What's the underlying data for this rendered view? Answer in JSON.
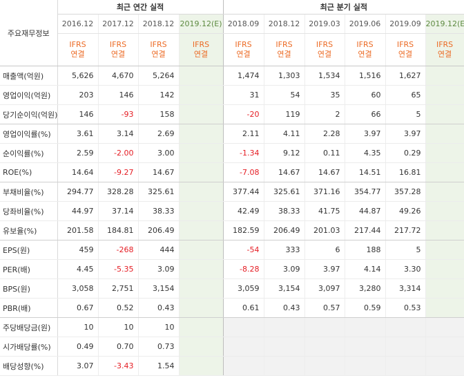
{
  "header": {
    "row_label": "주요재무정보",
    "annual_group": "최근 연간 실적",
    "quarter_group": "최근 분기 실적",
    "periods": [
      {
        "label": "2016.12"
      },
      {
        "label": "2017.12"
      },
      {
        "label": "2018.12"
      },
      {
        "label": "2019.12(E)"
      },
      {
        "label": "2018.09"
      },
      {
        "label": "2018.12"
      },
      {
        "label": "2019.03"
      },
      {
        "label": "2019.06"
      },
      {
        "label": "2019.09"
      },
      {
        "label": "2019.12(E)"
      }
    ],
    "standard_top": "IFRS",
    "standard_bottom": "연결"
  },
  "rows": [
    {
      "label": "매출액(억원)",
      "values": [
        "5,626",
        "4,670",
        "5,264",
        "",
        "1,474",
        "1,303",
        "1,534",
        "1,516",
        "1,627",
        ""
      ]
    },
    {
      "label": "영업이익(억원)",
      "values": [
        "203",
        "146",
        "142",
        "",
        "31",
        "54",
        "35",
        "60",
        "65",
        ""
      ]
    },
    {
      "label": "당기순이익(억원)",
      "values": [
        "146",
        "-93",
        "158",
        "",
        "-20",
        "119",
        "2",
        "66",
        "5",
        ""
      ]
    },
    {
      "label": "영업이익률(%)",
      "values": [
        "3.61",
        "3.14",
        "2.69",
        "",
        "2.11",
        "4.11",
        "2.28",
        "3.97",
        "3.97",
        ""
      ]
    },
    {
      "label": "순이익률(%)",
      "values": [
        "2.59",
        "-2.00",
        "3.00",
        "",
        "-1.34",
        "9.12",
        "0.11",
        "4.35",
        "0.29",
        ""
      ]
    },
    {
      "label": "ROE(%)",
      "values": [
        "14.64",
        "-9.27",
        "14.67",
        "",
        "-7.08",
        "14.67",
        "14.67",
        "14.51",
        "16.81",
        ""
      ]
    },
    {
      "label": "부채비율(%)",
      "values": [
        "294.77",
        "328.28",
        "325.61",
        "",
        "377.44",
        "325.61",
        "371.16",
        "354.77",
        "357.28",
        ""
      ]
    },
    {
      "label": "당좌비율(%)",
      "values": [
        "44.97",
        "37.14",
        "38.33",
        "",
        "42.49",
        "38.33",
        "41.75",
        "44.87",
        "49.26",
        ""
      ]
    },
    {
      "label": "유보율(%)",
      "values": [
        "201.58",
        "184.81",
        "206.49",
        "",
        "182.59",
        "206.49",
        "201.03",
        "217.44",
        "217.72",
        ""
      ]
    },
    {
      "label": "EPS(원)",
      "values": [
        "459",
        "-268",
        "444",
        "",
        "-54",
        "333",
        "6",
        "188",
        "5",
        ""
      ]
    },
    {
      "label": "PER(배)",
      "values": [
        "4.45",
        "-5.35",
        "3.09",
        "",
        "-8.28",
        "3.09",
        "3.97",
        "4.14",
        "3.30",
        ""
      ]
    },
    {
      "label": "BPS(원)",
      "values": [
        "3,058",
        "2,751",
        "3,154",
        "",
        "3,059",
        "3,154",
        "3,097",
        "3,280",
        "3,314",
        ""
      ]
    },
    {
      "label": "PBR(배)",
      "values": [
        "0.67",
        "0.52",
        "0.43",
        "",
        "0.61",
        "0.43",
        "0.57",
        "0.59",
        "0.53",
        ""
      ]
    },
    {
      "label": "주당배당금(원)",
      "values": [
        "10",
        "10",
        "10",
        "",
        "",
        "",
        "",
        "",
        "",
        ""
      ]
    },
    {
      "label": "시가배당률(%)",
      "values": [
        "0.49",
        "0.70",
        "0.73",
        "",
        "",
        "",
        "",
        "",
        "",
        ""
      ]
    },
    {
      "label": "배당성향(%)",
      "values": [
        "3.07",
        "-3.43",
        "1.54",
        "",
        "",
        "",
        "",
        "",
        "",
        ""
      ]
    }
  ],
  "colors": {
    "estimate_bg": "#edf4e8",
    "negative": "#e51c23",
    "ifrs": "#ec6a24",
    "empty_bg": "#f2f2f2"
  }
}
